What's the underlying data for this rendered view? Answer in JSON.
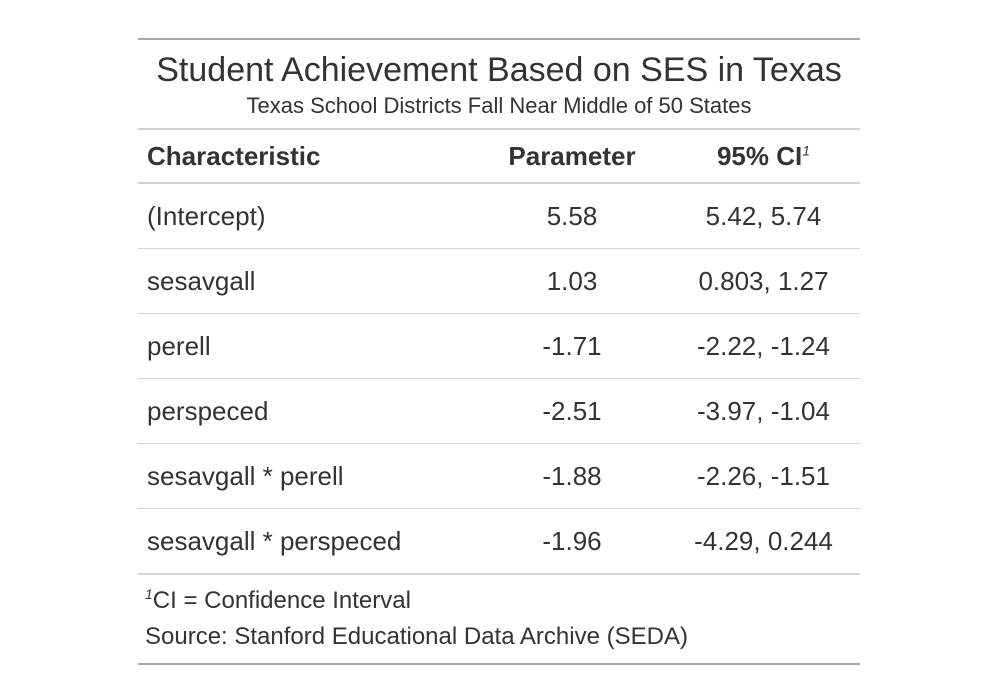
{
  "table": {
    "title": "Student Achievement Based on SES in Texas",
    "subtitle": "Texas School Districts Fall Near Middle of 50 States",
    "columns": {
      "characteristic": "Characteristic",
      "parameter": "Parameter",
      "ci": "95% CI",
      "ci_footnote_mark": "1"
    },
    "rows": [
      {
        "characteristic": "(Intercept)",
        "parameter": "5.58",
        "ci": "5.42, 5.74"
      },
      {
        "characteristic": "sesavgall",
        "parameter": "1.03",
        "ci": "0.803, 1.27"
      },
      {
        "characteristic": "perell",
        "parameter": "-1.71",
        "ci": "-2.22, -1.24"
      },
      {
        "characteristic": "perspeced",
        "parameter": "-2.51",
        "ci": "-3.97, -1.04"
      },
      {
        "characteristic": "sesavgall * perell",
        "parameter": "-1.88",
        "ci": "-2.26, -1.51"
      },
      {
        "characteristic": "sesavgall * perspeced",
        "parameter": "-1.96",
        "ci": "-4.29, 0.244"
      }
    ],
    "footnote_mark": "1",
    "footnote": "CI = Confidence Interval",
    "source": "Source: Stanford Educational Data Archive (SEDA)"
  }
}
